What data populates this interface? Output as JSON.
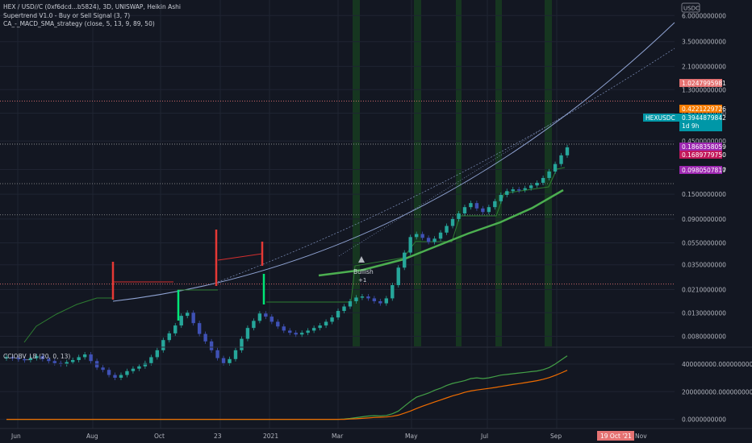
{
  "header": {
    "symbol_line": "HEX / USD//C (0xf6dcd...b5824), 3D, UNISWAP, Heikin Ashi",
    "indicator_1": "Supertrend V1.0 - Buy or Sell Signal (3, 7)",
    "indicator_2": "CA_-_MACD_SMA_strategy (close, 5, 13, 9, 89, 50)"
  },
  "currency_button": "USDC",
  "subchart_title": "CCIOBV_LB (20, 0, 13)",
  "signal": {
    "label": "Bullish",
    "value": "+1"
  },
  "price_axis_labels": [
    "6.0000000000",
    "3.5000000000",
    "2.1000000000",
    "1.3000000000",
    "0.8000000000",
    "0.4500000000",
    "0.2500000000",
    "0.1500000000",
    "0.0900000000",
    "0.0550000000",
    "0.0350000000",
    "0.0210000000",
    "0.0130000000",
    "0.0080000000"
  ],
  "price_boxes": [
    {
      "text": "1.0247995981",
      "color": "#e57373"
    },
    {
      "text": "0.4221229726",
      "color": "#f57c00"
    },
    {
      "text": "HEXUSDC",
      "color": "#0097a7"
    },
    {
      "text": "0.3944879842",
      "color": "#0097a7"
    },
    {
      "text": "1d 9h",
      "color": "#0097a7"
    },
    {
      "text": "0.1868358059",
      "color": "#9c27b0"
    },
    {
      "text": "0.1689779750",
      "color": "#c2185b"
    },
    {
      "text": "0.0980507817",
      "color": "#9c27b0"
    }
  ],
  "sub_axis_labels": [
    "400000000.0000000000",
    "200000000.0000000000",
    "0.0000000000"
  ],
  "time_axis_labels": [
    "Jun",
    "Aug",
    "Oct",
    "23",
    "2021",
    "Mar",
    "May",
    "Jul",
    "Sep"
  ],
  "time_box": "19 Oct '21",
  "time_axis_extra": "Nov",
  "colors": {
    "background": "#131722",
    "candle_up": "#26a69a",
    "candle_down": "#3f51b5",
    "supertrend_up": "#2e7d32",
    "supertrend_down": "#d32f2f",
    "ma_fast": "#4caf50",
    "curve": "#90a4d4",
    "obv": "#43a047",
    "obv_signal": "#ef6c00"
  },
  "chart_data": {
    "type": "candlestick",
    "y_scale": "log",
    "price_series": [
      0.0052,
      0.0051,
      0.005,
      0.0049,
      0.0051,
      0.0053,
      0.005,
      0.0048,
      0.0046,
      0.0045,
      0.0047,
      0.0049,
      0.0052,
      0.0055,
      0.0048,
      0.0042,
      0.004,
      0.0036,
      0.0034,
      0.0036,
      0.0039,
      0.0041,
      0.0043,
      0.0046,
      0.0052,
      0.006,
      0.0074,
      0.0085,
      0.01,
      0.0122,
      0.013,
      0.0105,
      0.0084,
      0.0072,
      0.006,
      0.0051,
      0.0046,
      0.005,
      0.006,
      0.0076,
      0.0095,
      0.011,
      0.0128,
      0.012,
      0.0108,
      0.0098,
      0.009,
      0.0086,
      0.0083,
      0.0086,
      0.009,
      0.0095,
      0.01,
      0.0108,
      0.0118,
      0.0135,
      0.0148,
      0.0165,
      0.0178,
      0.0182,
      0.0175,
      0.0165,
      0.0158,
      0.0175,
      0.023,
      0.033,
      0.045,
      0.062,
      0.066,
      0.061,
      0.056,
      0.06,
      0.068,
      0.078,
      0.09,
      0.101,
      0.115,
      0.125,
      0.112,
      0.104,
      0.115,
      0.13,
      0.148,
      0.16,
      0.166,
      0.164,
      0.17,
      0.18,
      0.19,
      0.21,
      0.24,
      0.28,
      0.335,
      0.395
    ],
    "subchart_series": [
      {
        "name": "CCIOBV",
        "values": [
          0,
          0,
          0,
          0,
          0,
          0,
          0,
          0,
          0,
          0,
          0,
          0,
          0,
          0,
          0,
          0,
          0,
          0,
          0,
          0,
          0,
          0,
          0,
          0,
          0,
          0,
          0,
          0,
          0,
          0,
          0,
          0,
          0,
          0,
          0,
          0,
          0,
          0,
          0,
          0,
          0,
          0,
          0,
          0,
          0,
          0,
          0,
          0,
          0,
          0,
          0,
          0,
          0,
          0,
          0,
          0,
          2000000,
          6000000,
          12000000,
          18000000,
          24000000,
          26000000,
          25000000,
          28000000,
          40000000,
          60000000,
          95000000,
          130000000,
          160000000,
          175000000,
          190000000,
          210000000,
          225000000,
          245000000,
          260000000,
          270000000,
          280000000,
          295000000,
          300000000,
          295000000,
          300000000,
          310000000,
          320000000,
          325000000,
          330000000,
          335000000,
          340000000,
          345000000,
          350000000,
          360000000,
          375000000,
          400000000,
          430000000,
          460000000
        ]
      },
      {
        "name": "Signal",
        "values": [
          0,
          0,
          0,
          0,
          0,
          0,
          0,
          0,
          0,
          0,
          0,
          0,
          0,
          0,
          0,
          0,
          0,
          0,
          0,
          0,
          0,
          0,
          0,
          0,
          0,
          0,
          0,
          0,
          0,
          0,
          0,
          0,
          0,
          0,
          0,
          0,
          0,
          0,
          0,
          0,
          0,
          0,
          0,
          0,
          0,
          0,
          0,
          0,
          0,
          0,
          0,
          0,
          0,
          0,
          0,
          0,
          0,
          2000000,
          4000000,
          7000000,
          10000000,
          13000000,
          15000000,
          17000000,
          22000000,
          30000000,
          45000000,
          60000000,
          78000000,
          95000000,
          110000000,
          125000000,
          140000000,
          155000000,
          170000000,
          182000000,
          195000000,
          205000000,
          212000000,
          218000000,
          224000000,
          230000000,
          238000000,
          245000000,
          252000000,
          258000000,
          265000000,
          272000000,
          280000000,
          290000000,
          302000000,
          318000000,
          336000000,
          355000000
        ]
      }
    ]
  }
}
